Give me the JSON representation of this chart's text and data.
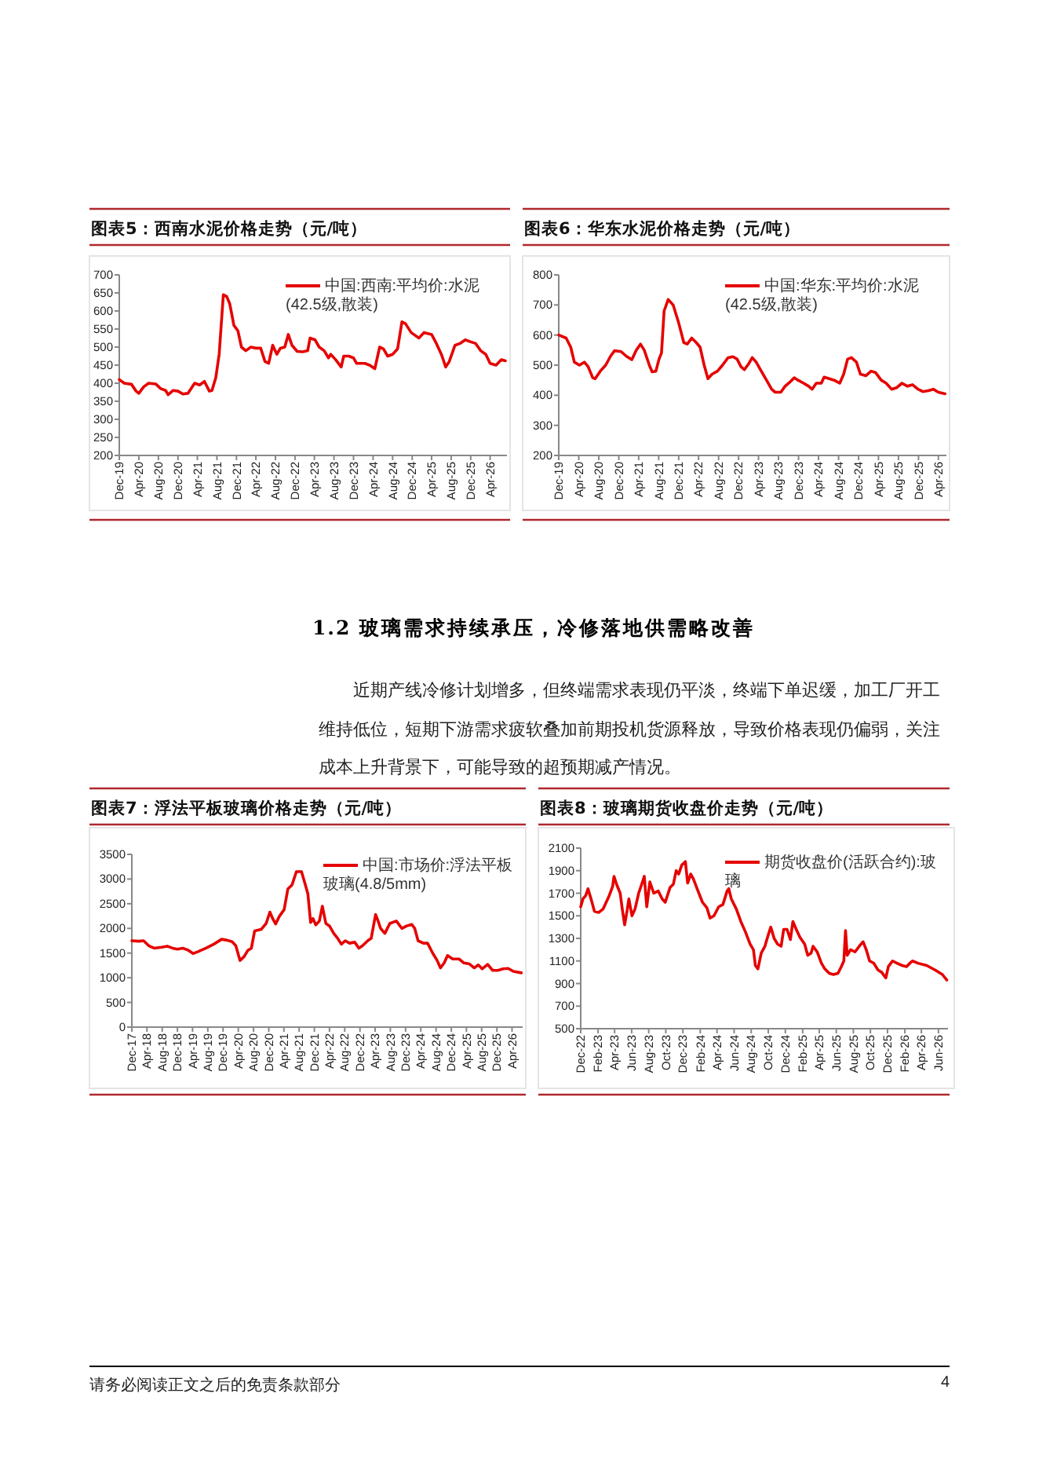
{
  "chart_data": [
    {
      "type": "line",
      "title": "图表5：西南水泥价格走势（元/吨）",
      "legend": "top right",
      "x": [
        "2019-12-01",
        "2020-01-01",
        "2020-02-15",
        "2020-03-15",
        "2020-04-01",
        "2020-05-01",
        "2020-06-01",
        "2020-07-15",
        "2020-08-15",
        "2020-09-15",
        "2020-10-01",
        "2020-11-01",
        "2020-12-01",
        "2021-01-01",
        "2021-02-01",
        "2021-03-15",
        "2021-04-15",
        "2021-05-15",
        "2021-06-15",
        "2021-07-01",
        "2021-07-25",
        "2021-08-15",
        "2021-09-10",
        "2021-10-01",
        "2021-10-20",
        "2021-11-15",
        "2021-12-10",
        "2022-01-01",
        "2022-01-28",
        "2022-03-01",
        "2022-04-01",
        "2022-05-01",
        "2022-05-28",
        "2022-06-20",
        "2022-07-15",
        "2022-08-10",
        "2022-09-01",
        "2022-09-28",
        "2022-10-20",
        "2022-11-12",
        "2022-12-15",
        "2023-01-18",
        "2023-02-18",
        "2023-03-05",
        "2023-04-05",
        "2023-05-01",
        "2023-06-01",
        "2023-06-28",
        "2023-07-12",
        "2023-08-12",
        "2023-09-15",
        "2023-10-01",
        "2023-11-01",
        "2023-12-01",
        "2023-12-20",
        "2024-02-10",
        "2024-03-10",
        "2024-04-12",
        "2024-05-12",
        "2024-06-05",
        "2024-07-01",
        "2024-08-01",
        "2024-09-01",
        "2024-09-28",
        "2024-10-20",
        "2024-11-25",
        "2025-01-12",
        "2025-02-12",
        "2025-04-01",
        "2025-05-01",
        "2025-06-01",
        "2025-06-28",
        "2025-07-20",
        "2025-08-25",
        "2025-09-25",
        "2025-10-28",
        "2025-11-28",
        "2026-01-01",
        "2026-02-01",
        "2026-03-05",
        "2026-04-01",
        "2026-05-08",
        "2026-06-10",
        "2026-07-05"
      ],
      "series": [
        {
          "name": "中国:西南:平均价:水泥(42.5级,散装)",
          "color": "#e60000",
          "values": [
            410,
            400,
            397,
            378,
            372,
            390,
            400,
            398,
            385,
            380,
            368,
            380,
            378,
            370,
            372,
            400,
            395,
            405,
            378,
            380,
            415,
            480,
            645,
            640,
            620,
            560,
            545,
            500,
            490,
            500,
            497,
            497,
            460,
            455,
            505,
            480,
            497,
            500,
            535,
            505,
            488,
            487,
            490,
            525,
            520,
            500,
            490,
            470,
            480,
            465,
            445,
            475,
            475,
            470,
            455,
            455,
            450,
            440,
            500,
            495,
            475,
            480,
            495,
            570,
            565,
            540,
            525,
            540,
            535,
            510,
            480,
            445,
            460,
            505,
            510,
            520,
            515,
            510,
            490,
            480,
            455,
            450,
            465,
            462
          ]
        }
      ],
      "xlim": [
        "2019-12-01",
        "2026-07-15"
      ],
      "ylim": [
        200,
        700
      ],
      "yticks": [
        200,
        250,
        300,
        350,
        400,
        450,
        500,
        550,
        600,
        650,
        700
      ],
      "xticks": [
        {
          "value": "2019-12",
          "label": "Dec-19"
        },
        {
          "value": "2020-04",
          "label": "Apr-20"
        },
        {
          "value": "2020-08",
          "label": "Aug-20"
        },
        {
          "value": "2020-12",
          "label": "Dec-20"
        },
        {
          "value": "2021-04",
          "label": "Apr-21"
        },
        {
          "value": "2021-08",
          "label": "Aug-21"
        },
        {
          "value": "2021-12",
          "label": "Dec-21"
        },
        {
          "value": "2022-04",
          "label": "Apr-22"
        },
        {
          "value": "2022-08",
          "label": "Aug-22"
        },
        {
          "value": "2022-12",
          "label": "Dec-22"
        },
        {
          "value": "2023-04",
          "label": "Apr-23"
        },
        {
          "value": "2023-08",
          "label": "Aug-23"
        },
        {
          "value": "2023-12",
          "label": "Dec-23"
        },
        {
          "value": "2024-04",
          "label": "Apr-24"
        },
        {
          "value": "2024-08",
          "label": "Aug-24"
        },
        {
          "value": "2024-12",
          "label": "Dec-24"
        },
        {
          "value": "2025-04",
          "label": "Apr-25"
        },
        {
          "value": "2025-08",
          "label": "Aug-25"
        },
        {
          "value": "2025-12",
          "label": "Dec-25"
        },
        {
          "value": "2026-04",
          "label": "Apr-26"
        }
      ]
    },
    {
      "type": "line",
      "title": "图表6：华东水泥价格走势（元/吨）",
      "legend": "top right",
      "x": [
        "2019-12-01",
        "2020-01-15",
        "2020-02-12",
        "2020-03-05",
        "2020-04-05",
        "2020-05-05",
        "2020-05-28",
        "2020-06-25",
        "2020-07-10",
        "2020-08-10",
        "2020-09-12",
        "2020-10-12",
        "2020-11-05",
        "2020-12-15",
        "2021-01-15",
        "2021-02-18",
        "2021-03-18",
        "2021-04-12",
        "2021-05-05",
        "2021-06-05",
        "2021-06-22",
        "2021-07-15",
        "2021-08-03",
        "2021-08-18",
        "2021-09-03",
        "2021-09-28",
        "2021-10-28",
        "2021-12-01",
        "2022-01-01",
        "2022-01-22",
        "2022-02-18",
        "2022-03-18",
        "2022-04-10",
        "2022-05-05",
        "2022-05-28",
        "2022-06-22",
        "2022-07-25",
        "2022-08-25",
        "2022-09-28",
        "2022-10-28",
        "2022-11-22",
        "2022-12-15",
        "2023-01-05",
        "2023-02-01",
        "2023-02-22",
        "2023-03-18",
        "2023-04-18",
        "2023-05-20",
        "2023-06-20",
        "2023-07-12",
        "2023-08-15",
        "2023-09-10",
        "2023-10-12",
        "2023-11-05",
        "2023-11-28",
        "2024-01-01",
        "2024-02-01",
        "2024-02-22",
        "2024-03-18",
        "2024-04-18",
        "2024-05-05",
        "2024-06-05",
        "2024-07-05",
        "2024-08-08",
        "2024-09-01",
        "2024-09-25",
        "2024-10-18",
        "2024-11-18",
        "2024-12-12",
        "2025-01-15",
        "2025-02-15",
        "2025-03-15",
        "2025-04-18",
        "2025-05-18",
        "2025-06-20",
        "2025-07-20",
        "2025-08-22",
        "2025-09-25",
        "2025-10-25",
        "2025-11-28",
        "2025-12-28",
        "2026-01-30",
        "2026-03-01",
        "2026-04-01",
        "2026-05-12"
      ],
      "series": [
        {
          "name": "中国:华东:平均价:水泥(42.5级,散装)",
          "color": "#e60000",
          "values": [
            600,
            590,
            560,
            510,
            500,
            510,
            495,
            458,
            455,
            480,
            500,
            530,
            548,
            545,
            530,
            518,
            550,
            570,
            550,
            500,
            478,
            480,
            520,
            540,
            680,
            718,
            700,
            640,
            575,
            570,
            590,
            575,
            560,
            500,
            455,
            470,
            480,
            500,
            525,
            528,
            520,
            495,
            485,
            505,
            525,
            510,
            480,
            450,
            420,
            410,
            410,
            430,
            445,
            458,
            450,
            440,
            430,
            420,
            440,
            440,
            460,
            455,
            450,
            440,
            470,
            520,
            525,
            510,
            470,
            465,
            480,
            475,
            450,
            440,
            420,
            425,
            440,
            430,
            435,
            420,
            412,
            415,
            420,
            410,
            405
          ]
        }
      ],
      "xlim": [
        "2019-12-01",
        "2026-05-20"
      ],
      "ylim": [
        200,
        800
      ],
      "yticks": [
        200,
        300,
        400,
        500,
        600,
        700,
        800
      ],
      "xticks": [
        {
          "value": "2019-12",
          "label": "Dec-19"
        },
        {
          "value": "2020-04",
          "label": "Apr-20"
        },
        {
          "value": "2020-08",
          "label": "Aug-20"
        },
        {
          "value": "2020-12",
          "label": "Dec-20"
        },
        {
          "value": "2021-04",
          "label": "Apr-21"
        },
        {
          "value": "2021-08",
          "label": "Aug-21"
        },
        {
          "value": "2021-12",
          "label": "Dec-21"
        },
        {
          "value": "2022-04",
          "label": "Apr-22"
        },
        {
          "value": "2022-08",
          "label": "Aug-22"
        },
        {
          "value": "2022-12",
          "label": "Dec-22"
        },
        {
          "value": "2023-04",
          "label": "Apr-23"
        },
        {
          "value": "2023-08",
          "label": "Aug-23"
        },
        {
          "value": "2023-12",
          "label": "Dec-23"
        },
        {
          "value": "2024-04",
          "label": "Apr-24"
        },
        {
          "value": "2024-08",
          "label": "Aug-24"
        },
        {
          "value": "2024-12",
          "label": "Dec-24"
        },
        {
          "value": "2025-04",
          "label": "Apr-25"
        },
        {
          "value": "2025-08",
          "label": "Aug-25"
        },
        {
          "value": "2025-12",
          "label": "Dec-25"
        },
        {
          "value": "2026-04",
          "label": "Apr-26"
        }
      ]
    },
    {
      "type": "line",
      "title": "图表7：浮法平板玻璃价格走势（元/吨）",
      "legend": "top right",
      "annotations": [
        "1.2 玻璃需求持续承压，冷修落地供需略改善",
        "近期产线冷修计划增多，但终端需求表现仍平淡，终端下单迟缓，加工厂开工维持低位，短期下游需求疲软叠加前期投机货源释放，导致价格表现仍偏弱，关注成本上升背景下，可能导致的超预期减产情况。"
      ],
      "x": [
        "2017-12-01",
        "2018-01-25",
        "2018-03-05",
        "2018-04-15",
        "2018-05-28",
        "2018-07-28",
        "2018-09-10",
        "2018-10-22",
        "2018-12-01",
        "2019-01-12",
        "2019-02-25",
        "2019-04-05",
        "2019-05-15",
        "2019-07-18",
        "2019-09-18",
        "2019-11-20",
        "2020-01-03",
        "2020-02-12",
        "2020-03-12",
        "2020-04-15",
        "2020-05-18",
        "2020-06-15",
        "2020-07-15",
        "2020-08-10",
        "2020-10-01",
        "2020-11-10",
        "2020-12-10",
        "2021-01-01",
        "2021-01-25",
        "2021-02-25",
        "2021-04-03",
        "2021-05-03",
        "2021-06-05",
        "2021-07-10",
        "2021-08-20",
        "2021-09-18",
        "2021-10-10",
        "2021-11-01",
        "2021-11-20",
        "2021-12-12",
        "2022-01-10",
        "2022-02-03",
        "2022-03-03",
        "2022-04-01",
        "2022-05-05",
        "2022-06-05",
        "2022-07-05",
        "2022-08-05",
        "2022-09-08",
        "2022-10-20",
        "2022-11-22",
        "2022-12-22",
        "2023-02-01",
        "2023-03-01",
        "2023-04-05",
        "2023-04-25",
        "2023-05-15",
        "2023-06-18",
        "2023-07-28",
        "2023-09-18",
        "2023-11-01",
        "2023-12-10",
        "2024-01-20",
        "2024-02-12",
        "2024-03-10",
        "2024-04-22",
        "2024-05-25",
        "2024-07-05",
        "2024-08-10",
        "2024-09-05",
        "2024-10-05",
        "2024-11-01",
        "2024-12-12",
        "2025-02-01",
        "2025-03-12",
        "2025-04-25",
        "2025-06-03",
        "2025-07-05",
        "2025-08-05",
        "2025-09-18",
        "2025-10-28",
        "2025-12-10",
        "2026-01-20",
        "2026-03-01",
        "2026-04-12",
        "2026-06-15"
      ],
      "series": [
        {
          "name": "中国:市场价:浮法平板玻璃(4.8/5mm)",
          "color": "#e60000",
          "values": [
            1750,
            1740,
            1750,
            1650,
            1600,
            1620,
            1640,
            1600,
            1580,
            1600,
            1560,
            1490,
            1530,
            1600,
            1680,
            1780,
            1760,
            1730,
            1650,
            1350,
            1430,
            1550,
            1600,
            1950,
            1980,
            2100,
            2330,
            2200,
            2090,
            2250,
            2380,
            2800,
            2880,
            3150,
            3150,
            2900,
            2700,
            2120,
            2200,
            2070,
            2150,
            2450,
            2100,
            2050,
            1900,
            1800,
            1680,
            1750,
            1700,
            1720,
            1600,
            1650,
            1750,
            1800,
            2280,
            2150,
            2000,
            1900,
            2100,
            2150,
            2000,
            2050,
            2080,
            2000,
            1750,
            1700,
            1700,
            1500,
            1350,
            1200,
            1300,
            1450,
            1380,
            1380,
            1300,
            1280,
            1200,
            1260,
            1180,
            1270,
            1150,
            1150,
            1180,
            1190,
            1130,
            1100
          ]
        }
      ],
      "xlim": [
        "2017-12-01",
        "2026-06-25"
      ],
      "ylim": [
        0,
        3500
      ],
      "yticks": [
        0,
        500,
        1000,
        1500,
        2000,
        2500,
        3000,
        3500
      ],
      "xticks": [
        {
          "value": "2017-12",
          "label": "Dec-17"
        },
        {
          "value": "2018-04",
          "label": "Apr-18"
        },
        {
          "value": "2018-08",
          "label": "Aug-18"
        },
        {
          "value": "2018-12",
          "label": "Dec-18"
        },
        {
          "value": "2019-04",
          "label": "Apr-19"
        },
        {
          "value": "2019-08",
          "label": "Aug-19"
        },
        {
          "value": "2019-12",
          "label": "Dec-19"
        },
        {
          "value": "2020-04",
          "label": "Apr-20"
        },
        {
          "value": "2020-08",
          "label": "Aug-20"
        },
        {
          "value": "2020-12",
          "label": "Dec-20"
        },
        {
          "value": "2021-04",
          "label": "Apr-21"
        },
        {
          "value": "2021-08",
          "label": "Aug-21"
        },
        {
          "value": "2021-12",
          "label": "Dec-21"
        },
        {
          "value": "2022-04",
          "label": "Apr-22"
        },
        {
          "value": "2022-08",
          "label": "Aug-22"
        },
        {
          "value": "2022-12",
          "label": "Dec-22"
        },
        {
          "value": "2023-04",
          "label": "Apr-23"
        },
        {
          "value": "2023-08",
          "label": "Aug-23"
        },
        {
          "value": "2023-12",
          "label": "Dec-23"
        },
        {
          "value": "2024-04",
          "label": "Apr-24"
        },
        {
          "value": "2024-08",
          "label": "Aug-24"
        },
        {
          "value": "2024-12",
          "label": "Dec-24"
        },
        {
          "value": "2025-04",
          "label": "Apr-25"
        },
        {
          "value": "2025-08",
          "label": "Aug-25"
        },
        {
          "value": "2025-12",
          "label": "Dec-25"
        },
        {
          "value": "2026-04",
          "label": "Apr-26"
        }
      ]
    },
    {
      "type": "line",
      "title": "图表8：玻璃期货收盘价走势（元/吨）",
      "legend": "top right",
      "annotations": [
        "请务必阅读正文之后的免责条款部分",
        "4"
      ],
      "x": [
        "2022-12-01",
        "2022-12-09",
        "2022-12-19",
        "2022-12-27",
        "2023-01-08",
        "2023-01-19",
        "2023-02-03",
        "2023-02-19",
        "2023-03-02",
        "2023-03-13",
        "2023-03-25",
        "2023-03-30",
        "2023-04-08",
        "2023-04-21",
        "2023-04-29",
        "2023-05-07",
        "2023-05-16",
        "2023-05-22",
        "2023-06-02",
        "2023-06-13",
        "2023-06-26",
        "2023-07-07",
        "2023-07-16",
        "2023-07-25",
        "2023-08-05",
        "2023-08-19",
        "2023-09-04",
        "2023-09-18",
        "2023-09-29",
        "2023-10-16",
        "2023-10-28",
        "2023-11-07",
        "2023-11-16",
        "2023-11-27",
        "2023-12-10",
        "2023-12-18",
        "2023-12-29",
        "2024-01-07",
        "2024-01-24",
        "2024-02-09",
        "2024-02-25",
        "2024-03-07",
        "2024-03-21",
        "2024-04-07",
        "2024-04-22",
        "2024-05-07",
        "2024-05-13",
        "2024-05-22",
        "2024-06-09",
        "2024-06-25",
        "2024-07-11",
        "2024-07-28",
        "2024-08-09",
        "2024-08-16",
        "2024-08-25",
        "2024-09-06",
        "2024-09-19",
        "2024-10-02",
        "2024-10-10",
        "2024-10-22",
        "2024-11-03",
        "2024-11-16",
        "2024-11-25",
        "2024-12-07",
        "2024-12-19",
        "2024-12-28",
        "2025-01-09",
        "2025-01-22",
        "2025-02-08",
        "2025-02-19",
        "2025-03-03",
        "2025-03-10",
        "2025-03-25",
        "2025-04-09",
        "2025-04-21",
        "2025-05-07",
        "2025-05-22",
        "2025-06-07",
        "2025-06-19",
        "2025-06-28",
        "2025-07-04",
        "2025-07-10",
        "2025-07-22",
        "2025-08-07",
        "2025-08-25",
        "2025-09-05",
        "2025-09-16",
        "2025-09-28",
        "2025-10-13",
        "2025-10-28",
        "2025-11-10",
        "2025-11-25",
        "2025-12-04",
        "2025-12-19",
        "2026-01-04",
        "2026-01-22",
        "2026-02-07",
        "2026-02-19",
        "2026-02-28",
        "2026-03-20",
        "2026-04-20",
        "2026-05-20",
        "2026-06-15",
        "2026-07-01"
      ],
      "series": [
        {
          "name": "期货收盘价(活跃合约):玻璃",
          "color": "#e60000",
          "values": [
            1580,
            1650,
            1680,
            1740,
            1640,
            1540,
            1530,
            1560,
            1620,
            1680,
            1760,
            1850,
            1780,
            1700,
            1550,
            1420,
            1550,
            1650,
            1500,
            1560,
            1700,
            1780,
            1850,
            1580,
            1800,
            1700,
            1720,
            1650,
            1620,
            1750,
            1780,
            1900,
            1870,
            1950,
            1980,
            1790,
            1870,
            1830,
            1720,
            1620,
            1570,
            1480,
            1500,
            1580,
            1600,
            1720,
            1740,
            1650,
            1560,
            1450,
            1360,
            1250,
            1200,
            1060,
            1030,
            1170,
            1230,
            1340,
            1400,
            1300,
            1250,
            1230,
            1380,
            1380,
            1290,
            1450,
            1380,
            1310,
            1250,
            1150,
            1170,
            1230,
            1180,
            1080,
            1030,
            990,
            980,
            990,
            1050,
            1100,
            1370,
            1150,
            1200,
            1180,
            1240,
            1270,
            1200,
            1100,
            1080,
            1020,
            1000,
            950,
            1050,
            1100,
            1080,
            1060,
            1050,
            1080,
            1100,
            1080,
            1060,
            1020,
            980,
            930
          ]
        }
      ],
      "xlim": [
        "2022-12-01",
        "2026-07-05"
      ],
      "ylim": [
        500,
        2100
      ],
      "yticks": [
        500,
        700,
        900,
        1100,
        1300,
        1500,
        1700,
        1900,
        2100
      ],
      "xticks": [
        {
          "value": "2022-12",
          "label": "Dec-22"
        },
        {
          "value": "2023-02",
          "label": "Feb-23"
        },
        {
          "value": "2023-04",
          "label": "Apr-23"
        },
        {
          "value": "2023-06",
          "label": "Jun-23"
        },
        {
          "value": "2023-08",
          "label": "Aug-23"
        },
        {
          "value": "2023-10",
          "label": "Oct-23"
        },
        {
          "value": "2023-12",
          "label": "Dec-23"
        },
        {
          "value": "2024-02",
          "label": "Feb-24"
        },
        {
          "value": "2024-04",
          "label": "Apr-24"
        },
        {
          "value": "2024-06",
          "label": "Jun-24"
        },
        {
          "value": "2024-08",
          "label": "Aug-24"
        },
        {
          "value": "2024-10",
          "label": "Oct-24"
        },
        {
          "value": "2024-12",
          "label": "Dec-24"
        },
        {
          "value": "2025-02",
          "label": "Feb-25"
        },
        {
          "value": "2025-04",
          "label": "Apr-25"
        },
        {
          "value": "2025-06",
          "label": "Jun-25"
        },
        {
          "value": "2025-08",
          "label": "Aug-25"
        },
        {
          "value": "2025-10",
          "label": "Oct-25"
        },
        {
          "value": "2025-12",
          "label": "Dec-25"
        },
        {
          "value": "2026-02",
          "label": "Feb-26"
        },
        {
          "value": "2026-04",
          "label": "Apr-26"
        },
        {
          "value": "2026-06",
          "label": "Jun-26"
        }
      ]
    }
  ]
}
